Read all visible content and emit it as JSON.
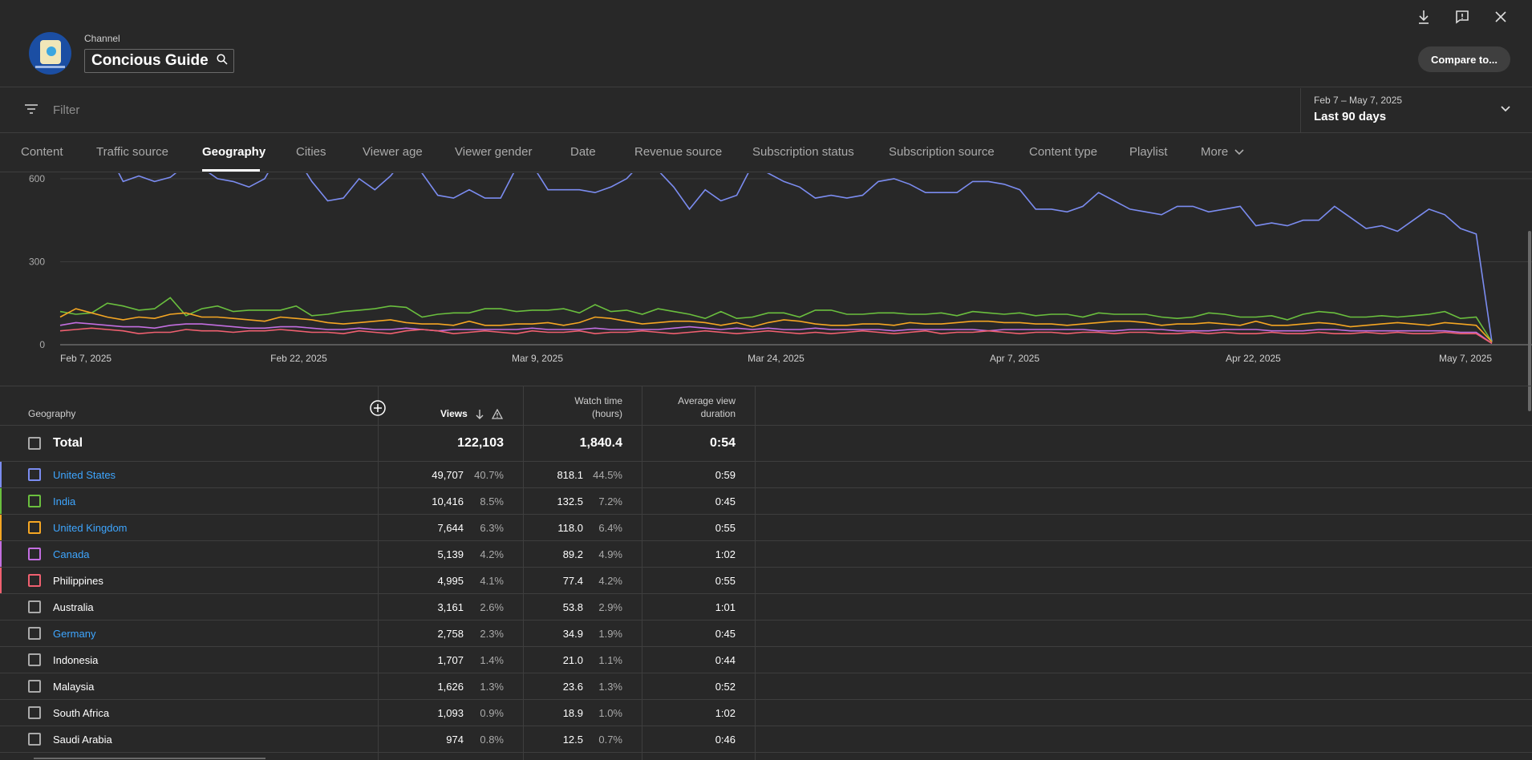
{
  "header": {
    "channel_label": "Channel",
    "channel_name": "Concious Guide",
    "compare_label": "Compare to..."
  },
  "filter": {
    "placeholder": "Filter"
  },
  "date_selector": {
    "range": "Feb 7 – May 7, 2025",
    "label": "Last 90 days"
  },
  "tabs": [
    "Content",
    "Traffic source",
    "Geography",
    "Cities",
    "Viewer age",
    "Viewer gender",
    "Date",
    "Revenue source",
    "Subscription status",
    "Subscription source",
    "Content type",
    "Playlist",
    "More"
  ],
  "active_tab": "Geography",
  "chart_data": {
    "type": "line",
    "y_ticks": [
      "600",
      "300",
      "0"
    ],
    "x_ticks": [
      "Feb 7, 2025",
      "Feb 22, 2025",
      "Mar 9, 2025",
      "Mar 24, 2025",
      "Apr 7, 2025",
      "Apr 22, 2025",
      "May 7, 2025"
    ],
    "ylim": [
      0,
      620
    ],
    "grid": true,
    "series": [
      {
        "name": "United States",
        "color": "#7b8cf0",
        "values": [
          640,
          650,
          680,
          700,
          590,
          610,
          590,
          605,
          650,
          640,
          600,
          590,
          570,
          600,
          700,
          680,
          590,
          520,
          530,
          600,
          560,
          610,
          680,
          620,
          540,
          530,
          560,
          530,
          530,
          640,
          650,
          560,
          560,
          560,
          550,
          570,
          600,
          660,
          630,
          570,
          490,
          560,
          520,
          540,
          650,
          620,
          590,
          570,
          530,
          540,
          530,
          540,
          590,
          600,
          580,
          550,
          550,
          550,
          590,
          590,
          580,
          560,
          490,
          490,
          480,
          500,
          550,
          520,
          490,
          480,
          470,
          500,
          500,
          480,
          490,
          500,
          430,
          440,
          430,
          450,
          450,
          500,
          460,
          420,
          430,
          410,
          450,
          490,
          470,
          420,
          400,
          10
        ]
      },
      {
        "name": "India",
        "color": "#6abf3e",
        "values": [
          120,
          110,
          115,
          150,
          140,
          125,
          130,
          170,
          105,
          130,
          140,
          120,
          125,
          125,
          125,
          140,
          105,
          110,
          120,
          125,
          130,
          140,
          135,
          100,
          110,
          115,
          115,
          130,
          130,
          120,
          125,
          125,
          130,
          115,
          145,
          120,
          125,
          110,
          130,
          120,
          110,
          95,
          120,
          95,
          100,
          115,
          115,
          100,
          125,
          125,
          110,
          110,
          115,
          115,
          110,
          110,
          115,
          105,
          120,
          115,
          110,
          115,
          105,
          110,
          110,
          100,
          115,
          110,
          110,
          110,
          100,
          95,
          100,
          115,
          110,
          100,
          100,
          105,
          90,
          110,
          120,
          115,
          100,
          100,
          105,
          100,
          105,
          110,
          120,
          95,
          100,
          10
        ]
      },
      {
        "name": "United Kingdom",
        "color": "#f5a623",
        "values": [
          100,
          130,
          115,
          100,
          90,
          100,
          95,
          110,
          115,
          100,
          100,
          95,
          90,
          85,
          100,
          95,
          90,
          80,
          75,
          80,
          85,
          90,
          80,
          75,
          75,
          70,
          85,
          70,
          70,
          75,
          75,
          80,
          70,
          80,
          100,
          95,
          85,
          75,
          80,
          85,
          85,
          80,
          70,
          80,
          65,
          80,
          90,
          85,
          75,
          70,
          70,
          75,
          75,
          70,
          80,
          75,
          75,
          80,
          85,
          85,
          80,
          80,
          75,
          75,
          70,
          75,
          80,
          85,
          85,
          80,
          70,
          75,
          75,
          80,
          75,
          70,
          85,
          70,
          70,
          75,
          80,
          75,
          65,
          70,
          75,
          80,
          75,
          70,
          80,
          75,
          70,
          10
        ]
      },
      {
        "name": "Canada",
        "color": "#c36ee0",
        "values": [
          70,
          80,
          75,
          70,
          65,
          65,
          60,
          70,
          75,
          75,
          70,
          65,
          60,
          60,
          65,
          65,
          60,
          55,
          55,
          60,
          55,
          55,
          60,
          55,
          50,
          55,
          55,
          55,
          55,
          55,
          60,
          55,
          55,
          55,
          60,
          55,
          55,
          55,
          55,
          60,
          65,
          60,
          55,
          60,
          55,
          60,
          55,
          55,
          60,
          55,
          55,
          55,
          55,
          50,
          55,
          55,
          55,
          55,
          55,
          50,
          55,
          55,
          55,
          55,
          55,
          55,
          50,
          50,
          55,
          55,
          55,
          50,
          50,
          50,
          55,
          55,
          55,
          50,
          50,
          50,
          55,
          55,
          50,
          50,
          50,
          50,
          50,
          50,
          50,
          45,
          45,
          5
        ]
      },
      {
        "name": "Philippines",
        "color": "#f06070",
        "values": [
          50,
          55,
          60,
          55,
          50,
          40,
          45,
          45,
          55,
          50,
          50,
          45,
          50,
          50,
          55,
          50,
          45,
          45,
          40,
          50,
          45,
          40,
          50,
          55,
          50,
          40,
          45,
          50,
          45,
          40,
          50,
          45,
          45,
          50,
          40,
          45,
          45,
          50,
          45,
          40,
          45,
          50,
          45,
          40,
          45,
          50,
          45,
          40,
          45,
          40,
          45,
          50,
          45,
          40,
          45,
          50,
          40,
          45,
          45,
          50,
          45,
          40,
          45,
          45,
          40,
          45,
          45,
          40,
          45,
          45,
          40,
          40,
          45,
          40,
          45,
          40,
          40,
          45,
          40,
          40,
          45,
          40,
          40,
          45,
          40,
          45,
          40,
          40,
          45,
          40,
          40,
          5
        ]
      }
    ]
  },
  "table": {
    "headers": {
      "geography": "Geography",
      "views": "Views",
      "watch_time_line1": "Watch time",
      "watch_time_line2": "(hours)",
      "avd_line1": "Average view",
      "avd_line2": "duration"
    },
    "total": {
      "label": "Total",
      "views": "122,103",
      "watch_time": "1,840.4",
      "avd": "0:54"
    },
    "rows": [
      {
        "name": "United States",
        "views": "49,707",
        "views_pct": "40.7%",
        "watch": "818.1",
        "watch_pct": "44.5%",
        "avd": "0:59",
        "color": "#7b8cf0",
        "link": true
      },
      {
        "name": "India",
        "views": "10,416",
        "views_pct": "8.5%",
        "watch": "132.5",
        "watch_pct": "7.2%",
        "avd": "0:45",
        "color": "#6abf3e",
        "link": true
      },
      {
        "name": "United Kingdom",
        "views": "7,644",
        "views_pct": "6.3%",
        "watch": "118.0",
        "watch_pct": "6.4%",
        "avd": "0:55",
        "color": "#f5a623",
        "link": true
      },
      {
        "name": "Canada",
        "views": "5,139",
        "views_pct": "4.2%",
        "watch": "89.2",
        "watch_pct": "4.9%",
        "avd": "1:02",
        "color": "#c36ee0",
        "link": true
      },
      {
        "name": "Philippines",
        "views": "4,995",
        "views_pct": "4.1%",
        "watch": "77.4",
        "watch_pct": "4.2%",
        "avd": "0:55",
        "color": "#f06070",
        "link": false
      },
      {
        "name": "Australia",
        "views": "3,161",
        "views_pct": "2.6%",
        "watch": "53.8",
        "watch_pct": "2.9%",
        "avd": "1:01",
        "color": "",
        "link": false
      },
      {
        "name": "Germany",
        "views": "2,758",
        "views_pct": "2.3%",
        "watch": "34.9",
        "watch_pct": "1.9%",
        "avd": "0:45",
        "color": "",
        "link": true
      },
      {
        "name": "Indonesia",
        "views": "1,707",
        "views_pct": "1.4%",
        "watch": "21.0",
        "watch_pct": "1.1%",
        "avd": "0:44",
        "color": "",
        "link": false
      },
      {
        "name": "Malaysia",
        "views": "1,626",
        "views_pct": "1.3%",
        "watch": "23.6",
        "watch_pct": "1.3%",
        "avd": "0:52",
        "color": "",
        "link": false
      },
      {
        "name": "South Africa",
        "views": "1,093",
        "views_pct": "0.9%",
        "watch": "18.9",
        "watch_pct": "1.0%",
        "avd": "1:02",
        "color": "",
        "link": false
      },
      {
        "name": "Saudi Arabia",
        "views": "974",
        "views_pct": "0.8%",
        "watch": "12.5",
        "watch_pct": "0.7%",
        "avd": "0:46",
        "color": "",
        "link": false
      }
    ]
  }
}
